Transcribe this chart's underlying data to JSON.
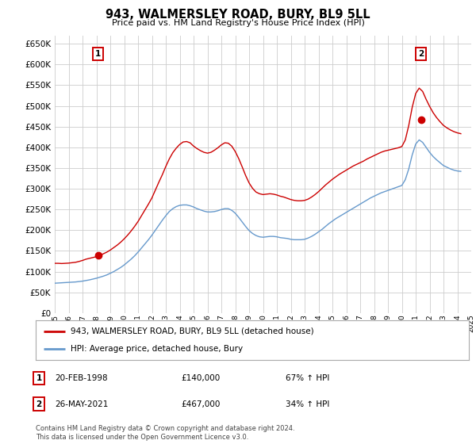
{
  "title": "943, WALMERSLEY ROAD, BURY, BL9 5LL",
  "subtitle": "Price paid vs. HM Land Registry's House Price Index (HPI)",
  "ylim": [
    0,
    670000
  ],
  "yticks": [
    0,
    50000,
    100000,
    150000,
    200000,
    250000,
    300000,
    350000,
    400000,
    450000,
    500000,
    550000,
    600000,
    650000
  ],
  "red_color": "#cc0000",
  "blue_color": "#6699cc",
  "grid_color": "#cccccc",
  "background_color": "#ffffff",
  "sale1": {
    "date": "20-FEB-1998",
    "price": 140000,
    "label": "1",
    "hpi_change": "67% ↑ HPI",
    "x": 1998.13
  },
  "sale2": {
    "date": "26-MAY-2021",
    "price": 467000,
    "label": "2",
    "hpi_change": "34% ↑ HPI",
    "x": 2021.38
  },
  "legend_entry1": "943, WALMERSLEY ROAD, BURY, BL9 5LL (detached house)",
  "legend_entry2": "HPI: Average price, detached house, Bury",
  "footer": "Contains HM Land Registry data © Crown copyright and database right 2024.\nThis data is licensed under the Open Government Licence v3.0.",
  "hpi_x": [
    1995.0,
    1995.25,
    1995.5,
    1995.75,
    1996.0,
    1996.25,
    1996.5,
    1996.75,
    1997.0,
    1997.25,
    1997.5,
    1997.75,
    1998.0,
    1998.25,
    1998.5,
    1998.75,
    1999.0,
    1999.25,
    1999.5,
    1999.75,
    2000.0,
    2000.25,
    2000.5,
    2000.75,
    2001.0,
    2001.25,
    2001.5,
    2001.75,
    2002.0,
    2002.25,
    2002.5,
    2002.75,
    2003.0,
    2003.25,
    2003.5,
    2003.75,
    2004.0,
    2004.25,
    2004.5,
    2004.75,
    2005.0,
    2005.25,
    2005.5,
    2005.75,
    2006.0,
    2006.25,
    2006.5,
    2006.75,
    2007.0,
    2007.25,
    2007.5,
    2007.75,
    2008.0,
    2008.25,
    2008.5,
    2008.75,
    2009.0,
    2009.25,
    2009.5,
    2009.75,
    2010.0,
    2010.25,
    2010.5,
    2010.75,
    2011.0,
    2011.25,
    2011.5,
    2011.75,
    2012.0,
    2012.25,
    2012.5,
    2012.75,
    2013.0,
    2013.25,
    2013.5,
    2013.75,
    2014.0,
    2014.25,
    2014.5,
    2014.75,
    2015.0,
    2015.25,
    2015.5,
    2015.75,
    2016.0,
    2016.25,
    2016.5,
    2016.75,
    2017.0,
    2017.25,
    2017.5,
    2017.75,
    2018.0,
    2018.25,
    2018.5,
    2018.75,
    2019.0,
    2019.25,
    2019.5,
    2019.75,
    2020.0,
    2020.25,
    2020.5,
    2020.75,
    2021.0,
    2021.25,
    2021.5,
    2021.75,
    2022.0,
    2022.25,
    2022.5,
    2022.75,
    2023.0,
    2023.25,
    2023.5,
    2023.75,
    2024.0,
    2024.25
  ],
  "hpi_blue_y": [
    72000,
    72500,
    73000,
    73500,
    74000,
    74500,
    75000,
    76000,
    77000,
    78500,
    80000,
    82000,
    84000,
    86500,
    89000,
    92000,
    96000,
    100000,
    105000,
    110000,
    116000,
    123000,
    130000,
    138000,
    147000,
    157000,
    167000,
    177000,
    188000,
    200000,
    212000,
    224000,
    235000,
    245000,
    252000,
    257000,
    260000,
    261000,
    261000,
    259000,
    256000,
    252000,
    249000,
    246000,
    244000,
    244000,
    245000,
    247000,
    250000,
    252000,
    252000,
    248000,
    241000,
    231000,
    220000,
    209000,
    199000,
    192000,
    187000,
    184000,
    183000,
    184000,
    185000,
    185000,
    184000,
    182000,
    181000,
    180000,
    178000,
    177000,
    177000,
    177000,
    178000,
    181000,
    185000,
    190000,
    196000,
    202000,
    209000,
    216000,
    222000,
    228000,
    233000,
    238000,
    243000,
    248000,
    253000,
    258000,
    263000,
    268000,
    273000,
    278000,
    282000,
    286000,
    290000,
    293000,
    296000,
    299000,
    302000,
    305000,
    308000,
    322000,
    348000,
    382000,
    408000,
    418000,
    412000,
    400000,
    388000,
    378000,
    370000,
    363000,
    356000,
    352000,
    348000,
    345000,
    343000,
    342000
  ],
  "hpi_red_y": [
    120000,
    120000,
    119500,
    120000,
    120500,
    121500,
    122500,
    124500,
    127000,
    130000,
    132000,
    134000,
    136000,
    139000,
    143000,
    147000,
    152000,
    158000,
    164000,
    171000,
    179000,
    188000,
    198000,
    209000,
    221000,
    235000,
    249000,
    263000,
    278000,
    297000,
    316000,
    334000,
    354000,
    372000,
    387000,
    398000,
    407000,
    413000,
    414000,
    411000,
    403000,
    397000,
    392000,
    388000,
    386000,
    388000,
    393000,
    399000,
    406000,
    411000,
    410000,
    403000,
    390000,
    373000,
    353000,
    332000,
    314000,
    301000,
    292000,
    288000,
    286000,
    287000,
    288000,
    287000,
    285000,
    282000,
    280000,
    277000,
    274000,
    272000,
    271000,
    271000,
    272000,
    275000,
    280000,
    286000,
    293000,
    301000,
    309000,
    316000,
    323000,
    329000,
    335000,
    340000,
    345000,
    350000,
    355000,
    359000,
    363000,
    367000,
    372000,
    376000,
    380000,
    384000,
    388000,
    391000,
    393000,
    395000,
    397000,
    399000,
    402000,
    418000,
    453000,
    497000,
    530000,
    543000,
    535000,
    516000,
    499000,
    484000,
    472000,
    462000,
    453000,
    447000,
    442000,
    438000,
    435000,
    433000
  ],
  "xticks": [
    1995,
    1996,
    1997,
    1998,
    1999,
    2000,
    2001,
    2002,
    2003,
    2004,
    2005,
    2006,
    2007,
    2008,
    2009,
    2010,
    2011,
    2012,
    2013,
    2014,
    2015,
    2016,
    2017,
    2018,
    2019,
    2020,
    2021,
    2022,
    2023,
    2024,
    2025
  ]
}
